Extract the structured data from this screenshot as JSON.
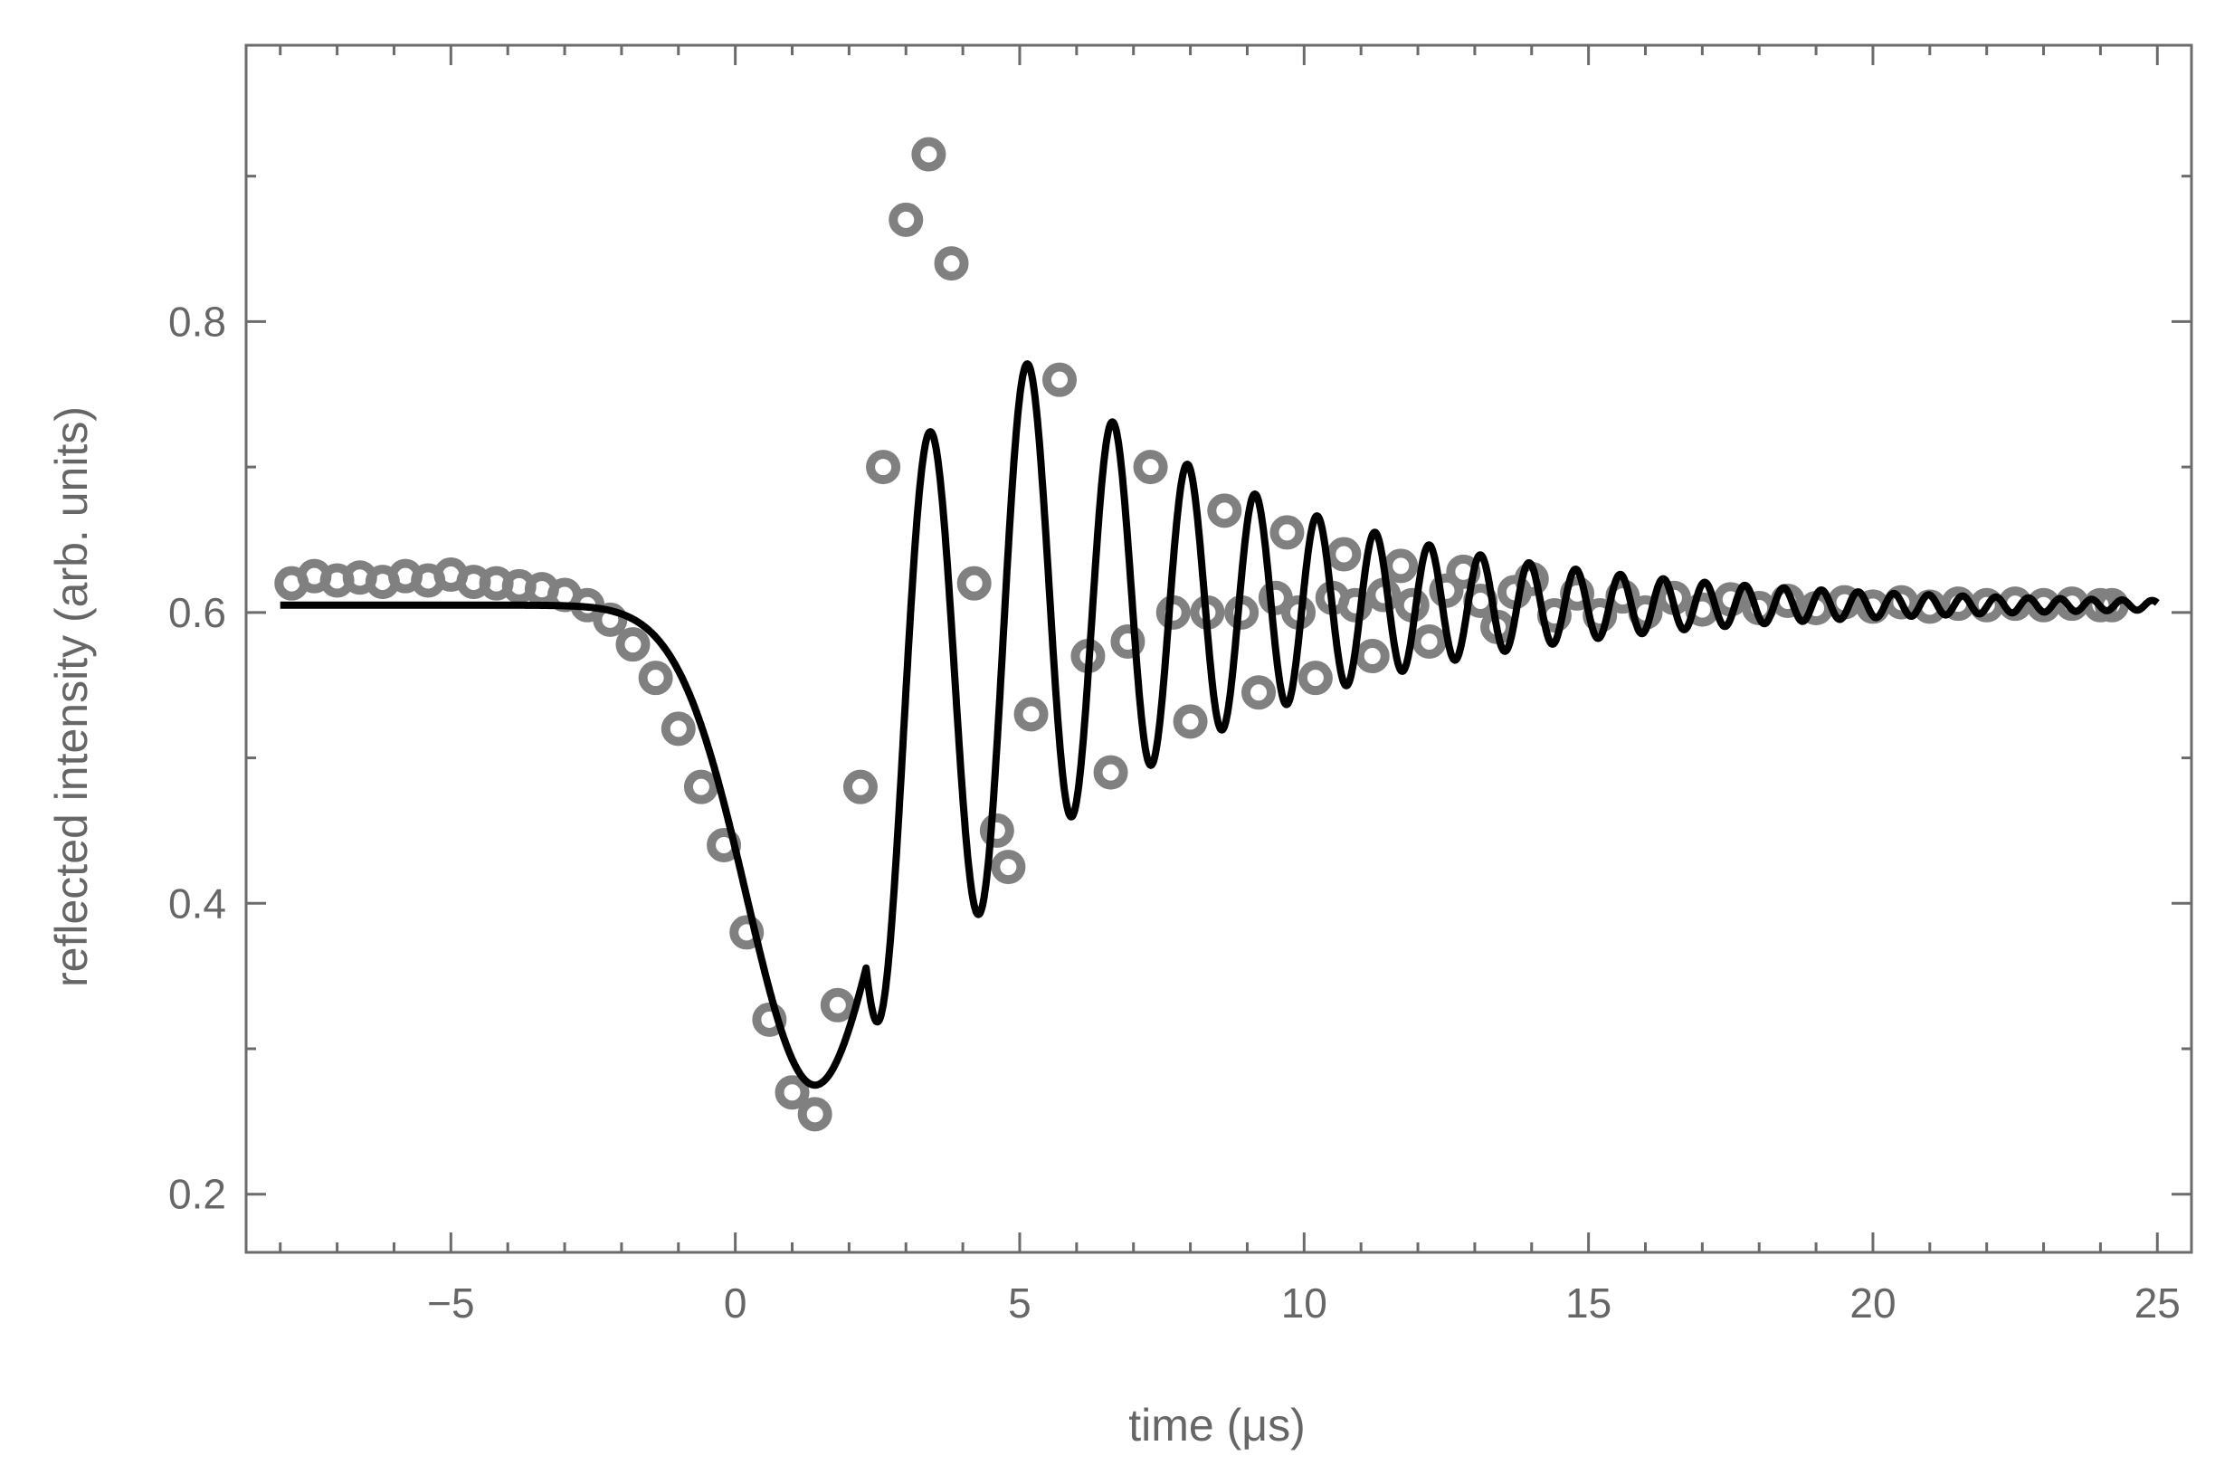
{
  "chart_data": {
    "type": "scatter",
    "xlabel": "time (μs)",
    "ylabel": "reflected intensity (arb. units)",
    "xlim": [
      -8.6,
      25.6
    ],
    "ylim": [
      0.16,
      0.99
    ],
    "xticks": [
      -5,
      0,
      5,
      10,
      15,
      20,
      25
    ],
    "xtick_labels": [
      "−5",
      "0",
      "5",
      "10",
      "15",
      "20",
      "25"
    ],
    "yticks": [
      0.2,
      0.4,
      0.6,
      0.8
    ],
    "ytick_labels": [
      "0.2",
      "0.4",
      "0.6",
      "0.8"
    ],
    "grid": false,
    "legend": "none",
    "colors": {
      "data_points": "#808080",
      "fit_line": "#000000",
      "axis": "#6b6b6b",
      "text": "#666666"
    },
    "series": [
      {
        "kind": "markers",
        "x": [
          -7.8,
          -7.4,
          -7.0,
          -6.6,
          -6.2,
          -5.8,
          -5.4,
          -5.0,
          -4.6,
          -4.2,
          -3.8,
          -3.4,
          -3.0,
          -2.6,
          -2.2,
          -1.8,
          -1.4,
          -1.0,
          -0.6,
          -0.2,
          0.2,
          0.6,
          1.0,
          1.4,
          1.8,
          2.2,
          2.6,
          3.0,
          3.4,
          3.8,
          4.2,
          4.6,
          4.8,
          5.2,
          5.7,
          6.2,
          6.6,
          6.9,
          7.3,
          7.7,
          8.0,
          8.3,
          8.6,
          8.9,
          9.2,
          9.5,
          9.7,
          9.9,
          10.2,
          10.5,
          10.7,
          10.9,
          11.2,
          11.4,
          11.7,
          11.9,
          12.2,
          12.5,
          12.8,
          13.1,
          13.4,
          13.7,
          14.0,
          14.4,
          14.8,
          15.2,
          15.6,
          16.0,
          16.5,
          17.0,
          17.5,
          18.0,
          18.5,
          19.0,
          19.5,
          20.0,
          20.5,
          21.0,
          21.5,
          22.0,
          22.5,
          23.0,
          23.5,
          24.0,
          24.2
        ],
        "y": [
          0.62,
          0.625,
          0.622,
          0.624,
          0.621,
          0.625,
          0.622,
          0.626,
          0.621,
          0.62,
          0.618,
          0.616,
          0.612,
          0.605,
          0.595,
          0.578,
          0.555,
          0.52,
          0.48,
          0.44,
          0.38,
          0.32,
          0.27,
          0.255,
          0.33,
          0.48,
          0.7,
          0.87,
          0.915,
          0.84,
          0.62,
          0.45,
          0.425,
          0.53,
          0.76,
          0.57,
          0.49,
          0.58,
          0.7,
          0.6,
          0.525,
          0.6,
          0.67,
          0.6,
          0.545,
          0.61,
          0.655,
          0.6,
          0.555,
          0.61,
          0.64,
          0.605,
          0.57,
          0.612,
          0.632,
          0.605,
          0.58,
          0.615,
          0.628,
          0.608,
          0.59,
          0.614,
          0.623,
          0.598,
          0.613,
          0.598,
          0.611,
          0.6,
          0.61,
          0.602,
          0.609,
          0.603,
          0.608,
          0.603,
          0.607,
          0.604,
          0.607,
          0.604,
          0.606,
          0.605,
          0.606,
          0.605,
          0.606,
          0.605,
          0.605
        ]
      },
      {
        "kind": "line",
        "model": {
          "baseline": 0.605,
          "gaussian_center": 1.4,
          "gaussian_width": 1.7,
          "gaussian_depth": 0.33,
          "oscillation_amplitude": 0.3,
          "oscillation_start": 2.3,
          "oscillation_decay": 5.0,
          "oscillation_period": 2.3,
          "chirp": 0.075,
          "x_range": [
            -8.0,
            25.0
          ]
        }
      }
    ]
  }
}
